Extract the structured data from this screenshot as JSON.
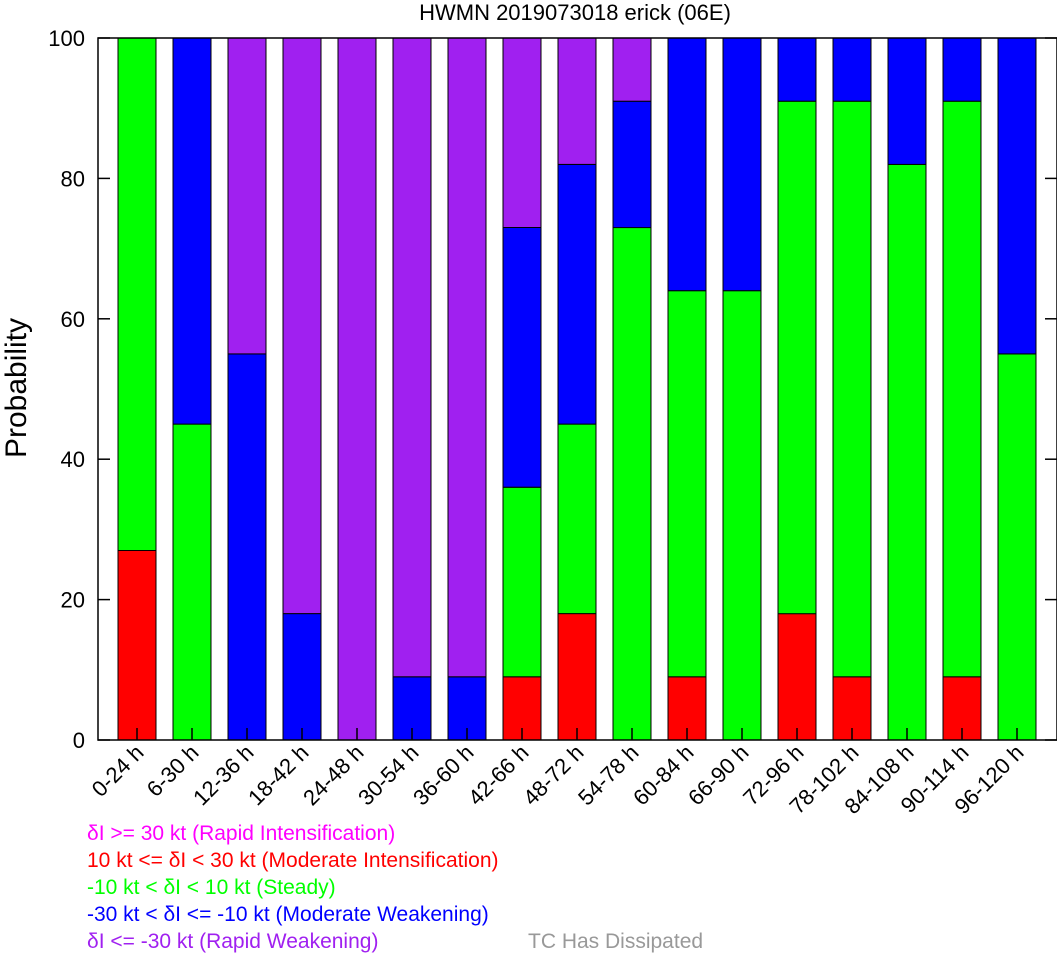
{
  "chart_data": {
    "type": "bar",
    "stacked": true,
    "title": "HWMN 2019073018 erick (06E)",
    "xlabel": "",
    "ylabel": "Probability",
    "ylim": [
      0,
      100
    ],
    "yticks": [
      0,
      20,
      40,
      60,
      80,
      100
    ],
    "grid": false,
    "categories": [
      "0-24 h",
      "6-30 h",
      "12-36 h",
      "18-42 h",
      "24-48 h",
      "30-54 h",
      "36-60 h",
      "42-66 h",
      "48-72 h",
      "54-78 h",
      "60-84 h",
      "66-90 h",
      "72-96 h",
      "78-102 h",
      "84-108 h",
      "90-114 h",
      "96-120 h"
    ],
    "series": [
      {
        "key": "moderate_intensification",
        "color": "#ff0000",
        "values": [
          27,
          0,
          0,
          0,
          0,
          0,
          0,
          9,
          18,
          0,
          9,
          0,
          18,
          9,
          0,
          9,
          0
        ]
      },
      {
        "key": "steady",
        "color": "#00ff00",
        "values": [
          73,
          45,
          0,
          0,
          0,
          0,
          0,
          27,
          27,
          73,
          55,
          64,
          73,
          82,
          82,
          82,
          55
        ]
      },
      {
        "key": "moderate_weakening",
        "color": "#0000ff",
        "values": [
          0,
          55,
          55,
          18,
          0,
          9,
          9,
          37,
          37,
          18,
          36,
          36,
          9,
          9,
          18,
          9,
          45
        ]
      },
      {
        "key": "rapid_weakening",
        "color": "#a020f0",
        "values": [
          0,
          0,
          45,
          82,
          100,
          91,
          91,
          27,
          18,
          9,
          0,
          0,
          0,
          0,
          0,
          0,
          0
        ]
      }
    ],
    "legend": {
      "placement": "bottom-left",
      "entries": [
        {
          "text": "δI >= 30 kt (Rapid Intensification)",
          "color": "#ff00ff"
        },
        {
          "text": "10 kt <= δI < 30 kt (Moderate Intensification)",
          "color": "#ff0000"
        },
        {
          "text": "-10 kt < δI < 10 kt (Steady)",
          "color": "#00ff00"
        },
        {
          "text": "-30 kt < δI <= -10 kt (Moderate Weakening)",
          "color": "#0000ff"
        },
        {
          "text": "δI <= -30 kt (Rapid Weakening)",
          "color": "#a020f0"
        }
      ],
      "dissipated": {
        "text": "TC Has Dissipated",
        "color": "#999999"
      }
    }
  }
}
